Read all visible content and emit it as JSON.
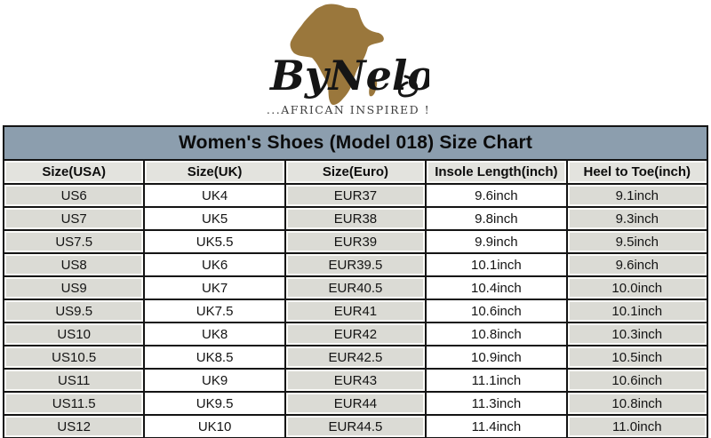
{
  "logo": {
    "brand": "ByNelo",
    "tagline": "...AFRICAN INSPIRED !",
    "map_icon": "africa-map-icon",
    "map_color": "#9A773C",
    "script_color": "#151515"
  },
  "table": {
    "title": "Women's Shoes (Model 018) Size Chart",
    "columns": [
      "Size(USA)",
      "Size(UK)",
      "Size(Euro)",
      "Insole Length(inch)",
      "Heel to Toe(inch)"
    ],
    "rows": [
      [
        "US6",
        "UK4",
        "EUR37",
        "9.6inch",
        "9.1inch"
      ],
      [
        "US7",
        "UK5",
        "EUR38",
        "9.8inch",
        "9.3inch"
      ],
      [
        "US7.5",
        "UK5.5",
        "EUR39",
        "9.9inch",
        "9.5inch"
      ],
      [
        "US8",
        "UK6",
        "EUR39.5",
        "10.1inch",
        "9.6inch"
      ],
      [
        "US9",
        "UK7",
        "EUR40.5",
        "10.4inch",
        "10.0inch"
      ],
      [
        "US9.5",
        "UK7.5",
        "EUR41",
        "10.6inch",
        "10.1inch"
      ],
      [
        "US10",
        "UK8",
        "EUR42",
        "10.8inch",
        "10.3inch"
      ],
      [
        "US10.5",
        "UK8.5",
        "EUR42.5",
        "10.9inch",
        "10.5inch"
      ],
      [
        "US11",
        "UK9",
        "EUR43",
        "11.1inch",
        "10.6inch"
      ],
      [
        "US11.5",
        "UK9.5",
        "EUR44",
        "11.3inch",
        "10.8inch"
      ],
      [
        "US12",
        "UK10",
        "EUR44.5",
        "11.4inch",
        "11.0inch"
      ]
    ],
    "colors": {
      "title_bg": "#8C9EAE",
      "header_bg": "#E3E3DE",
      "cell_gray": "#DBDBD5",
      "cell_white": "#FFFFFF",
      "border": "#141414",
      "inner_edge": "#FAFAF7"
    }
  },
  "chart_data": {
    "type": "table",
    "title": "Women's Shoes (Model 018) Size Chart",
    "columns": [
      "Size(USA)",
      "Size(UK)",
      "Size(Euro)",
      "Insole Length(inch)",
      "Heel to Toe(inch)"
    ],
    "rows": [
      [
        "US6",
        "UK4",
        "EUR37",
        "9.6inch",
        "9.1inch"
      ],
      [
        "US7",
        "UK5",
        "EUR38",
        "9.8inch",
        "9.3inch"
      ],
      [
        "US7.5",
        "UK5.5",
        "EUR39",
        "9.9inch",
        "9.5inch"
      ],
      [
        "US8",
        "UK6",
        "EUR39.5",
        "10.1inch",
        "9.6inch"
      ],
      [
        "US9",
        "UK7",
        "EUR40.5",
        "10.4inch",
        "10.0inch"
      ],
      [
        "US9.5",
        "UK7.5",
        "EUR41",
        "10.6inch",
        "10.1inch"
      ],
      [
        "US10",
        "UK8",
        "EUR42",
        "10.8inch",
        "10.3inch"
      ],
      [
        "US10.5",
        "UK8.5",
        "EUR42.5",
        "10.9inch",
        "10.5inch"
      ],
      [
        "US11",
        "UK9",
        "EUR43",
        "11.1inch",
        "10.6inch"
      ],
      [
        "US11.5",
        "UK9.5",
        "EUR44",
        "11.3inch",
        "10.8inch"
      ],
      [
        "US12",
        "UK10",
        "EUR44.5",
        "11.4inch",
        "11.0inch"
      ]
    ]
  }
}
